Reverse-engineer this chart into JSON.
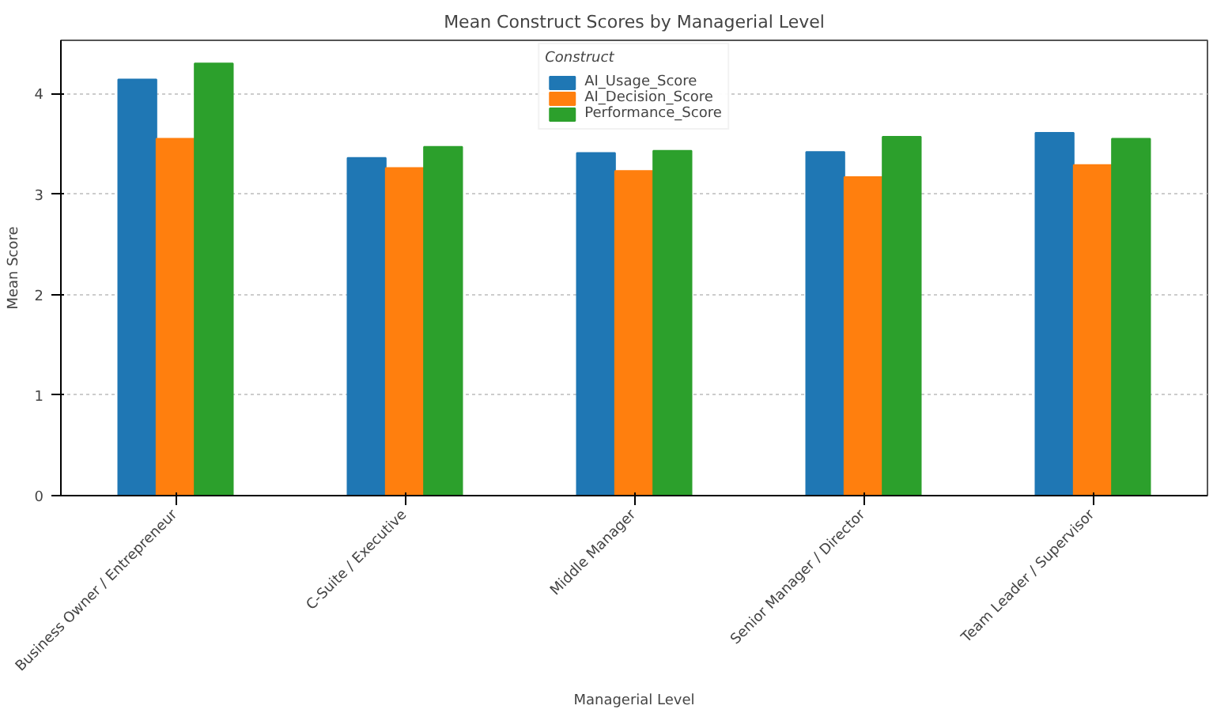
{
  "chart_data": {
    "type": "bar",
    "title": "Mean Construct Scores by Managerial Level",
    "xlabel": "Managerial Level",
    "ylabel": "Mean Score",
    "legend_title": "Construct",
    "legend": "top",
    "grid": "y",
    "ylim": [
      0,
      4.53
    ],
    "yticks": [
      0,
      1,
      2,
      3,
      4
    ],
    "categories": [
      "Business Owner / Entrepreneur",
      "C-Suite / Executive",
      "Middle Manager",
      "Senior Manager / Director",
      "Team Leader / Supervisor"
    ],
    "series": [
      {
        "name": "AI_Usage_Score",
        "color": "#1f77b4",
        "values": [
          4.14,
          3.36,
          3.41,
          3.42,
          3.61
        ]
      },
      {
        "name": "AI_Decision_Score",
        "color": "#ff7f0e",
        "values": [
          3.55,
          3.26,
          3.23,
          3.17,
          3.29
        ]
      },
      {
        "name": "Performance_Score",
        "color": "#2ca02c",
        "values": [
          4.3,
          3.47,
          3.43,
          3.57,
          3.55
        ]
      }
    ]
  }
}
